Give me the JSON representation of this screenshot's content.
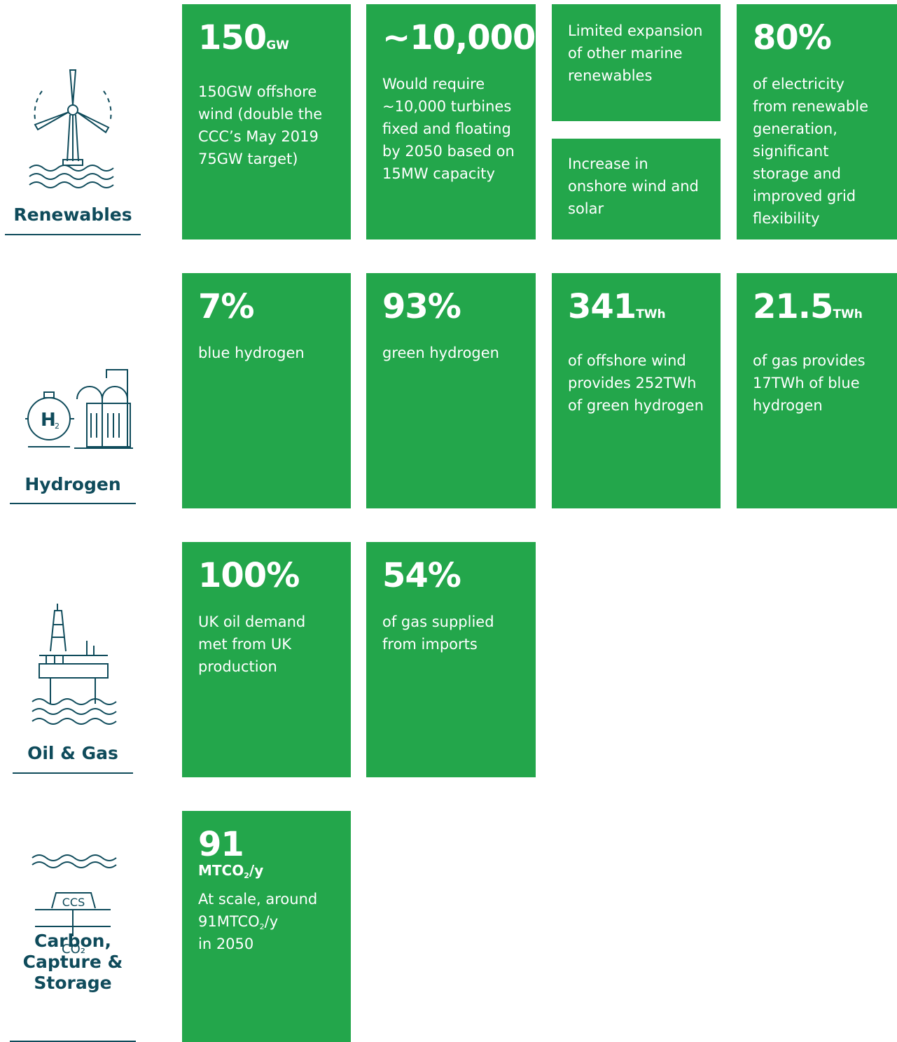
{
  "sections": [
    {
      "label": "Renewables",
      "cards": [
        {
          "figure": "150",
          "unit": "GW",
          "text": "150GW offshore wind (double the CCC’s May 2019 75GW target)"
        },
        {
          "figure": "~10,000",
          "text": "Would require ~10,000 turbines fixed and floating by 2050 based on 15MW capacity"
        },
        {
          "stack": [
            {
              "text": "Limited expansion of other marine renewables"
            },
            {
              "text": "Increase in onshore wind and solar"
            }
          ]
        },
        {
          "figure": "80%",
          "text": "of electricity from renewable generation, significant storage and improved grid flexibility"
        }
      ]
    },
    {
      "label": "Hydrogen",
      "icon": {
        "symbol": "H",
        "sub": "2"
      },
      "cards": [
        {
          "figure": "7%",
          "text": "blue hydrogen"
        },
        {
          "figure": "93%",
          "text": "green hydrogen"
        },
        {
          "figure": "341",
          "unit": "TWh",
          "text": "of offshore wind provides 252TWh of green hydrogen"
        },
        {
          "figure": "21.5",
          "unit": "TWh",
          "text": "of gas provides 17TWh of blue hydrogen"
        }
      ]
    },
    {
      "label": "Oil & Gas",
      "cards": [
        {
          "figure": "100%",
          "text": "UK oil demand met from UK production"
        },
        {
          "figure": "54%",
          "text": "of gas supplied from imports"
        }
      ]
    },
    {
      "label": "Carbon, Capture & Storage",
      "icon": {
        "box": "CCS",
        "gas": "CO₂"
      },
      "cards": [
        {
          "figure": "91",
          "unit_parts": {
            "before": "MTCO",
            "sub": "2",
            "after": "/y"
          },
          "text_parts": {
            "before": "At scale, around 91MTCO",
            "sub": "2",
            "after": "/y",
            "last": "in 2050"
          }
        }
      ]
    }
  ]
}
